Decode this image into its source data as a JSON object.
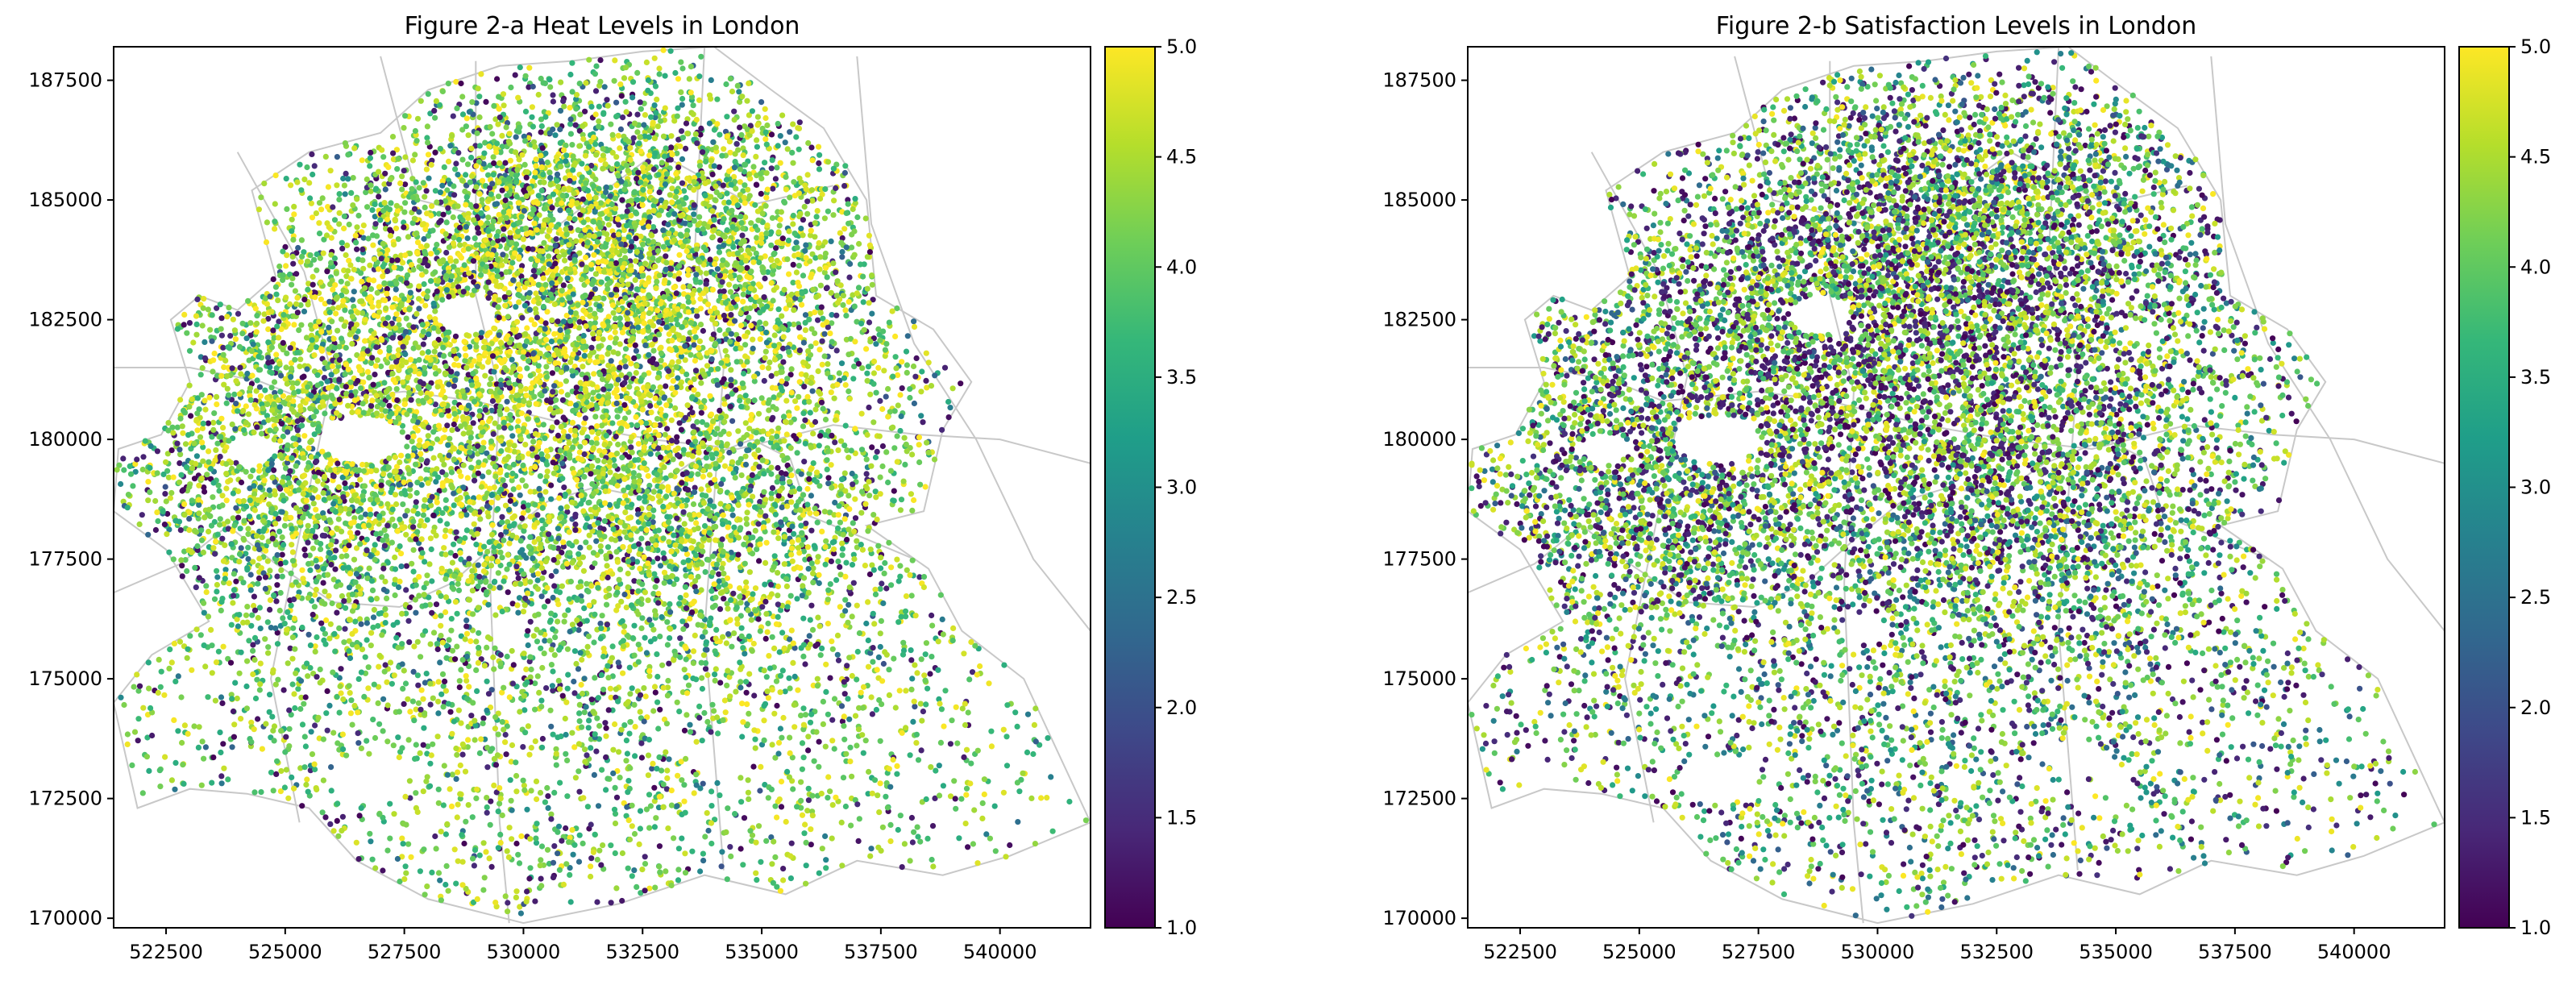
{
  "chart_data": [
    {
      "type": "scatter",
      "title": "Figure 2-a  Heat Levels in London",
      "xlabel": "",
      "ylabel": "",
      "xlim": [
        521400,
        541900
      ],
      "ylim": [
        169800,
        188200
      ],
      "xticks": [
        522500,
        525000,
        527500,
        530000,
        532500,
        535000,
        537500,
        540000
      ],
      "yticks": [
        170000,
        172500,
        175000,
        177500,
        180000,
        182500,
        185000,
        187500
      ],
      "colorbar": {
        "range": [
          1.0,
          5.0
        ],
        "ticks": [
          "1.0",
          "1.5",
          "2.0",
          "2.5",
          "3.0",
          "3.5",
          "4.0",
          "4.5",
          "5.0"
        ],
        "colormap": "viridis"
      },
      "point_count_approx": 12000,
      "value_bias": "high values (green/yellow) dominate, concentrated in central and northern areas"
    },
    {
      "type": "scatter",
      "title": "Figure 2-b  Satisfaction Levels in London",
      "xlabel": "",
      "ylabel": "",
      "xlim": [
        521400,
        541900
      ],
      "ylim": [
        169800,
        188200
      ],
      "xticks": [
        522500,
        525000,
        527500,
        530000,
        532500,
        535000,
        537500,
        540000
      ],
      "yticks": [
        170000,
        172500,
        175000,
        177500,
        180000,
        182500,
        185000,
        187500
      ],
      "colorbar": {
        "range": [
          1.0,
          5.0
        ],
        "ticks": [
          "1.0",
          "1.5",
          "2.0",
          "2.5",
          "3.0",
          "3.5",
          "4.0",
          "4.5",
          "5.0"
        ],
        "colormap": "viridis"
      },
      "point_count_approx": 12000,
      "value_bias": "mixed values with many low (purple) points in the central area"
    }
  ],
  "colors": {
    "viridis": [
      "#440154",
      "#482878",
      "#3e4989",
      "#31688e",
      "#26828e",
      "#1f9e89",
      "#35b779",
      "#6ece58",
      "#b5de2b",
      "#fde725"
    ],
    "boundary": "#c8c8c8",
    "axes": "#000000"
  }
}
